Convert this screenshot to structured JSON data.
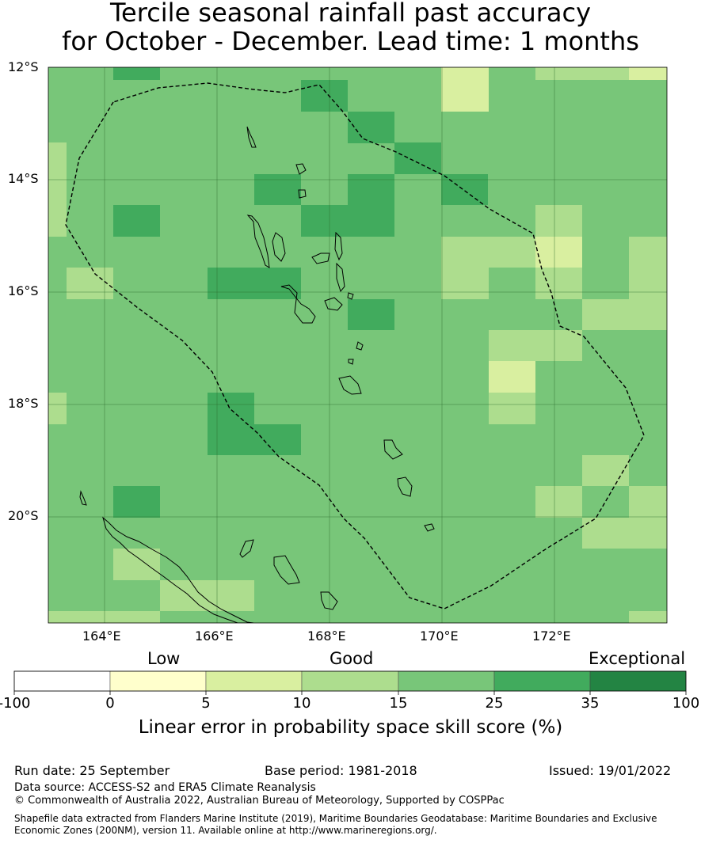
{
  "title": {
    "line1": "Tercile seasonal rainfall past accuracy",
    "line2": "for October - December. Lead time: 1 months"
  },
  "map": {
    "lat_labels": [
      "12°S",
      "14°S",
      "16°S",
      "18°S",
      "20°S"
    ],
    "lon_labels": [
      "164°E",
      "166°E",
      "168°E",
      "170°E",
      "172°E"
    ],
    "lon_range": [
      163.0,
      174.0
    ],
    "lat_range": [
      -21.9,
      -12.0
    ],
    "grid_cell_deg": 0.83,
    "colors": {
      "c5_10": "#d9efa0",
      "c10_15": "#addd8e",
      "c15_25": "#78c679",
      "c25_35": "#41ab5d",
      "c35_100": "#238443",
      "below_0": "#ffffff",
      "c0_5": "#ffffcc"
    },
    "features": [
      "eez-boundary-dashed",
      "coastline"
    ]
  },
  "colorbar": {
    "category_labels": [
      "Low",
      "Good",
      "Exceptional"
    ],
    "ticks": [
      "-100",
      "0",
      "5",
      "10",
      "15",
      "25",
      "35",
      "100"
    ],
    "colors": [
      "#ffffff",
      "#ffffcc",
      "#d9efa0",
      "#addd8e",
      "#78c679",
      "#41ab5d",
      "#238443"
    ],
    "title": "Linear error in probability space skill score (%)"
  },
  "footer": {
    "run_date": "Run date: 25 September",
    "base_period": "Base period: 1981-2018",
    "issued": "Issued: 19/01/2022",
    "data_source": "Data source: ACCESS-S2 and ERA5 Climate Reanalysis",
    "copyright": "© Commonwealth of Australia 2022, Australian Bureau of Meteorology, Supported by COSPPac",
    "shapefile_line1": "Shapefile data extracted from Flanders Marine Institute (2019), Maritime Boundaries Geodatabase: Maritime Boundaries and Exclusive",
    "shapefile_line2": "Economic Zones (200NM), version 11. Available online at http://www.marineregions.org/."
  }
}
